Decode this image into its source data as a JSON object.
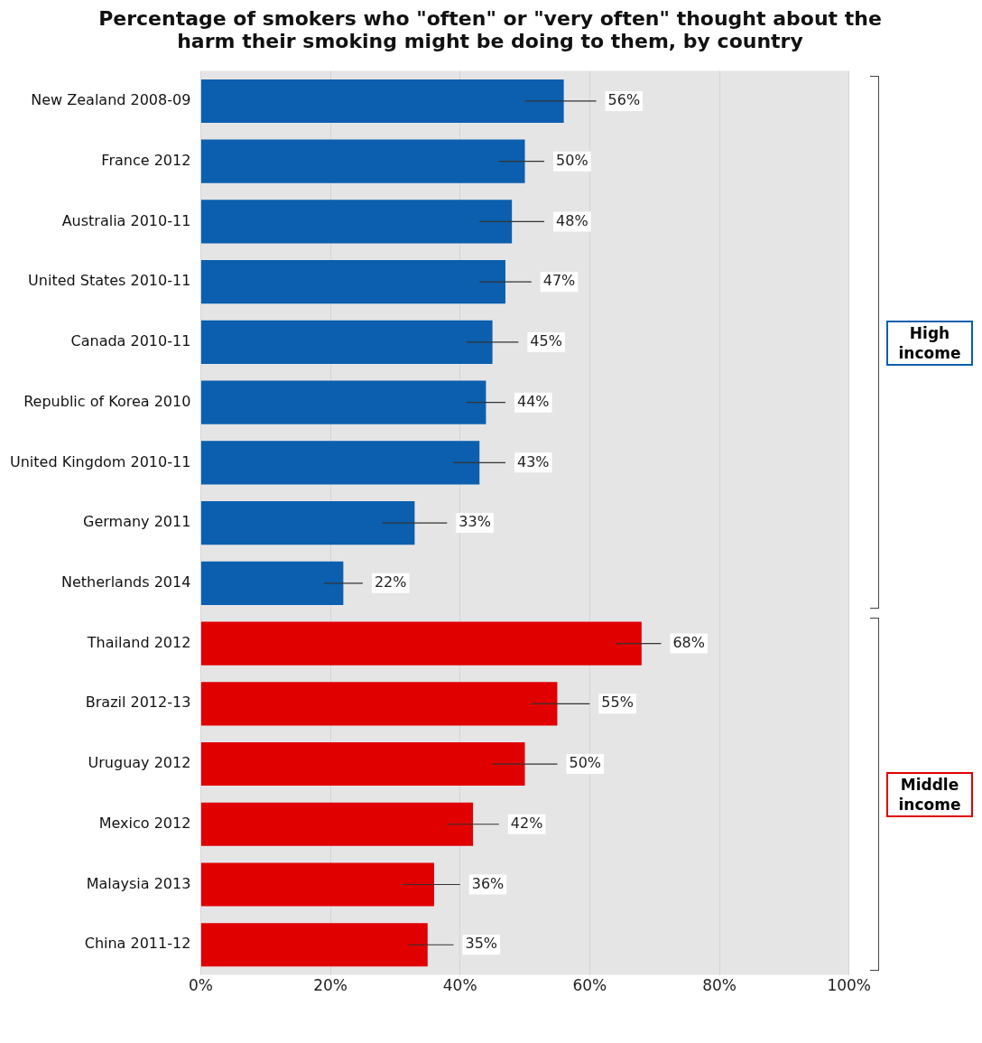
{
  "chart_data": {
    "type": "bar",
    "orientation": "horizontal",
    "title": "Percentage of smokers who \"often\" or \"very often\" thought about the harm their smoking might be doing to them, by country",
    "categories": [
      "New Zealand 2008-09",
      "France 2012",
      "Australia 2010-11",
      "United States 2010-11",
      "Canada 2010-11",
      "Republic of Korea 2010",
      "United Kingdom 2010-11",
      "Germany 2011",
      "Netherlands 2014",
      "Thailand 2012",
      "Brazil 2012-13",
      "Uruguay 2012",
      "Mexico 2012",
      "Malaysia 2013",
      "China 2011-12"
    ],
    "values": [
      56,
      50,
      48,
      47,
      45,
      44,
      43,
      33,
      22,
      68,
      55,
      50,
      42,
      36,
      35
    ],
    "value_labels": [
      "56%",
      "50%",
      "48%",
      "47%",
      "45%",
      "44%",
      "43%",
      "33%",
      "22%",
      "68%",
      "55%",
      "50%",
      "42%",
      "36%",
      "35%"
    ],
    "errors": [
      [
        50,
        61
      ],
      [
        46,
        53
      ],
      [
        43,
        53
      ],
      [
        43,
        51
      ],
      [
        41,
        49
      ],
      [
        41,
        47
      ],
      [
        39,
        47
      ],
      [
        28,
        38
      ],
      [
        19,
        25
      ],
      [
        64,
        71
      ],
      [
        51,
        60
      ],
      [
        45,
        55
      ],
      [
        38,
        46
      ],
      [
        31,
        40
      ],
      [
        32,
        39
      ]
    ],
    "colors": [
      "#0b5fae",
      "#0b5fae",
      "#0b5fae",
      "#0b5fae",
      "#0b5fae",
      "#0b5fae",
      "#0b5fae",
      "#0b5fae",
      "#0b5fae",
      "#e00000",
      "#e00000",
      "#e00000",
      "#e00000",
      "#e00000",
      "#e00000"
    ],
    "xlim": [
      0,
      100
    ],
    "xticks": [
      {
        "value": 0,
        "label": "0%"
      },
      {
        "value": 20,
        "label": "20%"
      },
      {
        "value": 40,
        "label": "40%"
      },
      {
        "value": 60,
        "label": "60%"
      },
      {
        "value": 80,
        "label": "80%"
      },
      {
        "value": 100,
        "label": "100%"
      }
    ],
    "grid": "x",
    "annotations": [
      "High income",
      "Middle income"
    ]
  }
}
